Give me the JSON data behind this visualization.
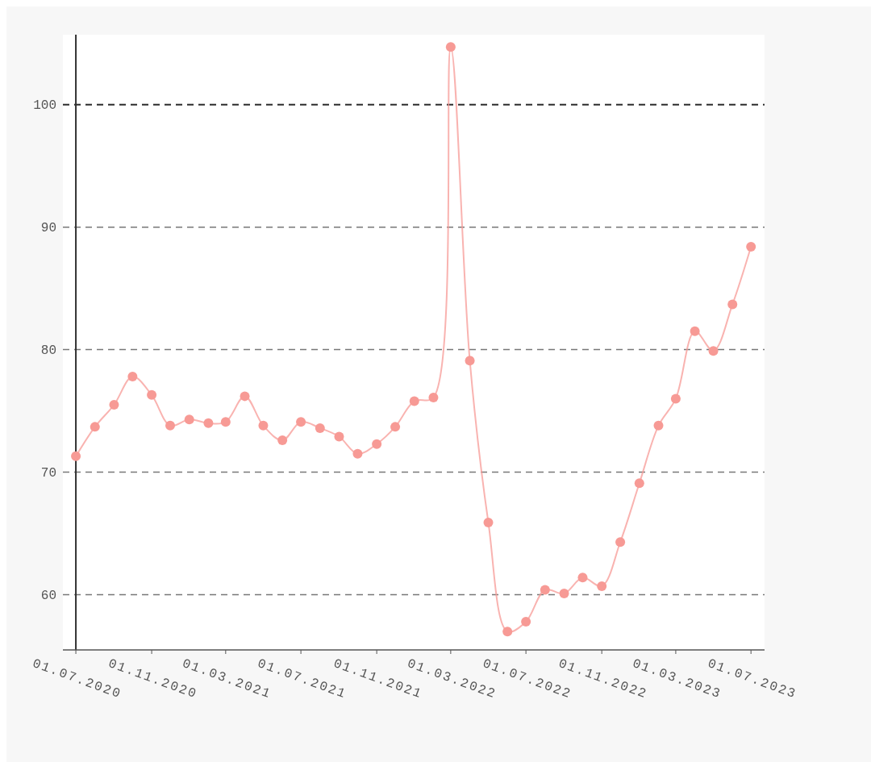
{
  "chart_data": {
    "type": "line",
    "x": [
      "2020-07-01",
      "2020-08-01",
      "2020-09-01",
      "2020-10-01",
      "2020-11-01",
      "2020-12-01",
      "2021-01-01",
      "2021-02-01",
      "2021-03-01",
      "2021-04-01",
      "2021-05-01",
      "2021-06-01",
      "2021-07-01",
      "2021-08-01",
      "2021-09-01",
      "2021-10-01",
      "2021-11-01",
      "2021-12-01",
      "2022-01-01",
      "2022-02-01",
      "2022-03-01",
      "2022-04-01",
      "2022-05-01",
      "2022-06-01",
      "2022-07-01",
      "2022-08-01",
      "2022-09-01",
      "2022-10-01",
      "2022-11-01",
      "2022-12-01",
      "2023-01-01",
      "2023-02-01",
      "2023-03-01",
      "2023-04-01",
      "2023-05-01",
      "2023-06-01",
      "2023-07-01"
    ],
    "series": [
      {
        "color": "#f79a95",
        "values": [
          71.3,
          73.7,
          75.5,
          77.8,
          76.3,
          73.8,
          74.3,
          74.0,
          74.1,
          76.2,
          73.8,
          72.6,
          74.1,
          73.6,
          72.9,
          71.5,
          72.3,
          73.7,
          75.8,
          76.1,
          104.7,
          79.1,
          65.9,
          57.0,
          57.8,
          60.4,
          60.1,
          61.4,
          60.7,
          64.3,
          69.1,
          73.8,
          76.0,
          81.5,
          79.9,
          83.7,
          88.4
        ]
      }
    ],
    "xlim": [
      "2020-06-10",
      "2023-07-23"
    ],
    "xticks": [
      {
        "value": "2020-07-01",
        "label": "01.07.2020"
      },
      {
        "value": "2020-11-01",
        "label": "01.11.2020"
      },
      {
        "value": "2021-03-01",
        "label": "01.03.2021"
      },
      {
        "value": "2021-07-01",
        "label": "01.07.2021"
      },
      {
        "value": "2021-11-01",
        "label": "01.11.2021"
      },
      {
        "value": "2022-03-01",
        "label": "01.03.2022"
      },
      {
        "value": "2022-07-01",
        "label": "01.07.2022"
      },
      {
        "value": "2022-11-01",
        "label": "01.11.2022"
      },
      {
        "value": "2023-03-01",
        "label": "01.03.2023"
      },
      {
        "value": "2023-07-01",
        "label": "01.07.2023"
      }
    ],
    "ylim": [
      55.5,
      105.7
    ],
    "yticks": [
      60,
      70,
      80,
      90,
      100
    ],
    "grid": "y",
    "marker": "circle",
    "line_style": "solid",
    "ref_lines": [
      {
        "axis": "y",
        "value": 100,
        "color": "#333333",
        "line_style": "dashed"
      },
      {
        "axis": "x",
        "value": "2020-07-01",
        "color": "#333333",
        "line_style": "solid"
      }
    ]
  }
}
